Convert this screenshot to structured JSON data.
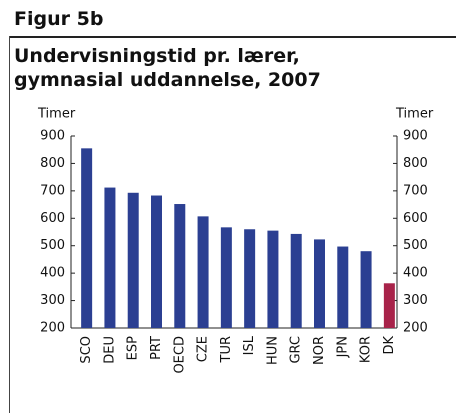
{
  "chart_data": {
    "type": "bar",
    "figure_label": "Figur 5b",
    "title": "Undervisningstid pr. lærer, gymnasial uddannelse, 2007",
    "y_label": "Timer",
    "y2_label": "Timer",
    "categories": [
      "SCO",
      "DEU",
      "ESP",
      "PRT",
      "OECD",
      "CZE",
      "TUR",
      "ISL",
      "HUN",
      "GRC",
      "NOR",
      "JPN",
      "KOR",
      "DK"
    ],
    "values": [
      855,
      712,
      693,
      683,
      652,
      607,
      567,
      560,
      555,
      543,
      523,
      497,
      480,
      363
    ],
    "colors": [
      "#2b3f92",
      "#2b3f92",
      "#2b3f92",
      "#2b3f92",
      "#2b3f92",
      "#2b3f92",
      "#2b3f92",
      "#2b3f92",
      "#2b3f92",
      "#2b3f92",
      "#2b3f92",
      "#2b3f92",
      "#2b3f92",
      "#a8234a"
    ],
    "ylim": [
      200,
      900
    ],
    "yticks": [
      200,
      300,
      400,
      500,
      600,
      700,
      800,
      900
    ],
    "y2lim": [
      200,
      900
    ],
    "y2ticks": [
      200,
      300,
      400,
      500,
      600,
      700,
      800,
      900
    ]
  }
}
